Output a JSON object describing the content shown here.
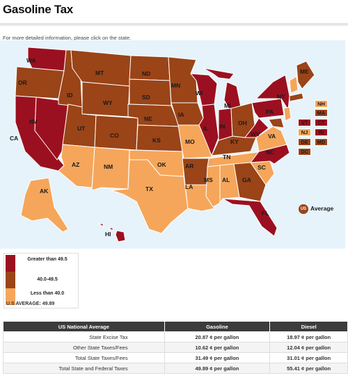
{
  "page": {
    "title": "Gasoline Tax",
    "hint": "For more detailed information, please click on the state."
  },
  "colors": {
    "high": "#9b1020",
    "mid": "#9a4418",
    "low": "#f5a65a",
    "ocean": "#e6f3fb"
  },
  "map": {
    "states": [
      {
        "abbr": "WA",
        "tier": "high"
      },
      {
        "abbr": "OR",
        "tier": "mid"
      },
      {
        "abbr": "CA",
        "tier": "high"
      },
      {
        "abbr": "NV",
        "tier": "high"
      },
      {
        "abbr": "ID",
        "tier": "mid"
      },
      {
        "abbr": "MT",
        "tier": "mid"
      },
      {
        "abbr": "WY",
        "tier": "mid"
      },
      {
        "abbr": "UT",
        "tier": "mid"
      },
      {
        "abbr": "AZ",
        "tier": "low"
      },
      {
        "abbr": "CO",
        "tier": "mid"
      },
      {
        "abbr": "NM",
        "tier": "low"
      },
      {
        "abbr": "ND",
        "tier": "mid"
      },
      {
        "abbr": "SD",
        "tier": "mid"
      },
      {
        "abbr": "NE",
        "tier": "mid"
      },
      {
        "abbr": "KS",
        "tier": "mid"
      },
      {
        "abbr": "OK",
        "tier": "low"
      },
      {
        "abbr": "TX",
        "tier": "low"
      },
      {
        "abbr": "MN",
        "tier": "mid"
      },
      {
        "abbr": "IA",
        "tier": "mid"
      },
      {
        "abbr": "MO",
        "tier": "low"
      },
      {
        "abbr": "AR",
        "tier": "mid"
      },
      {
        "abbr": "LA",
        "tier": "low"
      },
      {
        "abbr": "WI",
        "tier": "high"
      },
      {
        "abbr": "IL",
        "tier": "high"
      },
      {
        "abbr": "MI",
        "tier": "high"
      },
      {
        "abbr": "IN",
        "tier": "high"
      },
      {
        "abbr": "OH",
        "tier": "mid"
      },
      {
        "abbr": "KY",
        "tier": "mid"
      },
      {
        "abbr": "TN",
        "tier": "low"
      },
      {
        "abbr": "MS",
        "tier": "low"
      },
      {
        "abbr": "AL",
        "tier": "low"
      },
      {
        "abbr": "GA",
        "tier": "mid"
      },
      {
        "abbr": "FL",
        "tier": "high"
      },
      {
        "abbr": "SC",
        "tier": "low"
      },
      {
        "abbr": "NC",
        "tier": "high"
      },
      {
        "abbr": "VA",
        "tier": "low"
      },
      {
        "abbr": "WV",
        "tier": "high"
      },
      {
        "abbr": "PA",
        "tier": "high"
      },
      {
        "abbr": "NY",
        "tier": "high"
      },
      {
        "abbr": "ME",
        "tier": "mid"
      },
      {
        "abbr": "AK",
        "tier": "low"
      },
      {
        "abbr": "HI",
        "tier": "high"
      }
    ],
    "northeast": [
      {
        "abbr": "NH",
        "tier": "low"
      },
      {
        "abbr": "MA",
        "tier": "mid"
      },
      {
        "abbr": "VT",
        "tier": "high"
      },
      {
        "abbr": "CT",
        "tier": "high"
      },
      {
        "abbr": "NJ",
        "tier": "low"
      },
      {
        "abbr": "RI",
        "tier": "high"
      },
      {
        "abbr": "DE",
        "tier": "mid"
      },
      {
        "abbr": "MD",
        "tier": "mid"
      },
      {
        "abbr": "DC",
        "tier": "mid"
      }
    ],
    "us_badge": "US",
    "us_average_label": "Average"
  },
  "legend": {
    "items": [
      {
        "label": "Greater than 49.5",
        "tier": "high"
      },
      {
        "label": "40.0-49.5",
        "tier": "mid"
      },
      {
        "label": "Less than 40.0",
        "tier": "low"
      }
    ],
    "us_average": "U.S AVERAGE: 49.89"
  },
  "table": {
    "headers": [
      "US National Average",
      "Gasoline",
      "Diesel"
    ],
    "rows": [
      [
        "State Excise Tax",
        "20.87 ¢ per gallon",
        "18.97 ¢ per gallon"
      ],
      [
        "Other State Taxes/Fees",
        "10.62 ¢ per gallon",
        "12.04 ¢ per gallon"
      ],
      [
        "Total State Taxes/Fees",
        "31.49 ¢ per gallon",
        "31.01 ¢ per gallon"
      ],
      [
        "Total State and Federal Taxes",
        "49.89 ¢ per gallon",
        "55.41 ¢ per gallon"
      ]
    ]
  }
}
